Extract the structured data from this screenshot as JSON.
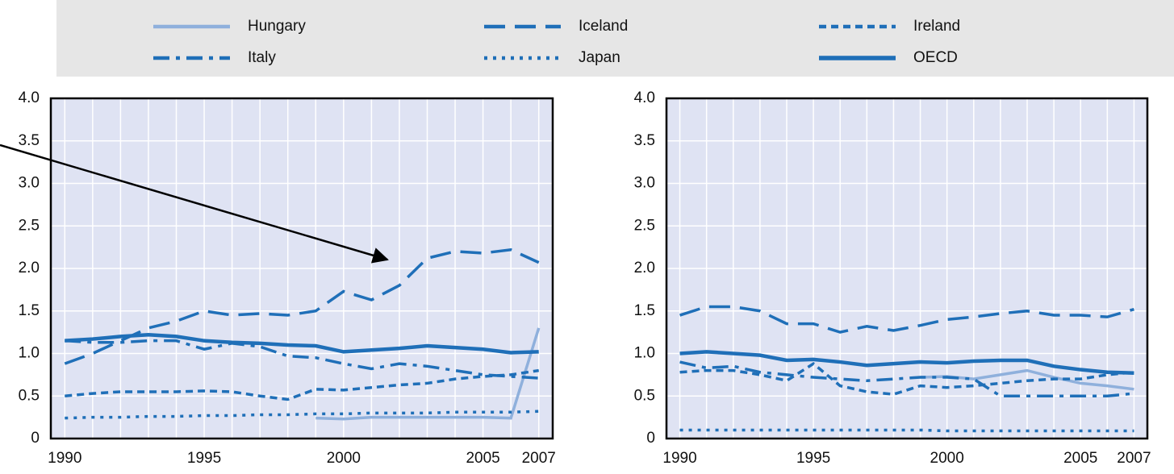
{
  "chart_data": [
    {
      "type": "line",
      "x": [
        1990,
        1991,
        1992,
        1993,
        1994,
        1995,
        1996,
        1997,
        1998,
        1999,
        2000,
        2001,
        2002,
        2003,
        2004,
        2005,
        2006,
        2007
      ],
      "xlim": [
        1989.5,
        2007.5
      ],
      "xticks": [
        1990,
        1995,
        2000,
        2005,
        2007
      ],
      "ylim": [
        0,
        4
      ],
      "yticks": [
        0,
        {
          "value": 0.5,
          "label": "0.5"
        },
        {
          "value": 1,
          "label": "1.0"
        },
        {
          "value": 1.5,
          "label": "1.5"
        },
        {
          "value": 2,
          "label": "2.0"
        },
        {
          "value": 2.5,
          "label": "2.5"
        },
        {
          "value": 3,
          "label": "3.0"
        },
        {
          "value": 3.5,
          "label": "3.5"
        },
        {
          "value": 4,
          "label": "4.0"
        }
      ],
      "grid": true,
      "series": [
        {
          "name": "Hungary",
          "color": "#8fb0dc",
          "dash": "solid",
          "values": [
            null,
            null,
            null,
            null,
            null,
            null,
            null,
            null,
            null,
            0.24,
            0.23,
            0.25,
            0.25,
            0.25,
            0.25,
            0.25,
            0.24,
            1.3
          ]
        },
        {
          "name": "Iceland",
          "color": "#1f6fb8",
          "dash": "long",
          "values": [
            0.88,
            1.0,
            1.15,
            1.3,
            1.38,
            1.5,
            1.45,
            1.47,
            1.45,
            1.5,
            1.73,
            1.63,
            1.8,
            2.12,
            2.2,
            2.18,
            2.22,
            2.07
          ]
        },
        {
          "name": "Ireland",
          "color": "#1f6fb8",
          "dash": "short",
          "values": [
            0.5,
            0.53,
            0.55,
            0.55,
            0.55,
            0.56,
            0.55,
            0.5,
            0.46,
            0.58,
            0.57,
            0.6,
            0.63,
            0.65,
            0.7,
            0.73,
            0.75,
            0.8
          ]
        },
        {
          "name": "Italy",
          "color": "#1f6fb8",
          "dash": "dashdot",
          "values": [
            1.15,
            1.13,
            1.13,
            1.15,
            1.15,
            1.05,
            1.12,
            1.08,
            0.97,
            0.95,
            0.88,
            0.82,
            0.88,
            0.85,
            0.8,
            0.75,
            0.73,
            0.71
          ]
        },
        {
          "name": "Japan",
          "color": "#1f6fb8",
          "dash": "dot",
          "values": [
            0.24,
            0.25,
            0.25,
            0.26,
            0.26,
            0.27,
            0.27,
            0.28,
            0.28,
            0.29,
            0.29,
            0.3,
            0.3,
            0.3,
            0.31,
            0.31,
            0.31,
            0.32
          ]
        },
        {
          "name": "OECD",
          "color": "#1f6fb8",
          "dash": "thick",
          "values": [
            1.15,
            1.17,
            1.2,
            1.22,
            1.2,
            1.15,
            1.13,
            1.12,
            1.1,
            1.09,
            1.02,
            1.04,
            1.06,
            1.09,
            1.07,
            1.05,
            1.01,
            1.02
          ]
        }
      ]
    },
    {
      "type": "line",
      "x": [
        1990,
        1991,
        1992,
        1993,
        1994,
        1995,
        1996,
        1997,
        1998,
        1999,
        2000,
        2001,
        2002,
        2003,
        2004,
        2005,
        2006,
        2007
      ],
      "xlim": [
        1989.5,
        2007.5
      ],
      "xticks": [
        1990,
        1995,
        2000,
        2005,
        2007
      ],
      "ylim": [
        0,
        4
      ],
      "yticks": [
        0,
        {
          "value": 0.5,
          "label": "0.5"
        },
        {
          "value": 1,
          "label": "1.0"
        },
        {
          "value": 1.5,
          "label": "1.5"
        },
        {
          "value": 2,
          "label": "2.0"
        },
        {
          "value": 2.5,
          "label": "2.5"
        },
        {
          "value": 3,
          "label": "3.0"
        },
        {
          "value": 3.5,
          "label": "3.5"
        },
        {
          "value": 4,
          "label": "4.0"
        }
      ],
      "grid": true,
      "series": [
        {
          "name": "Hungary",
          "color": "#8fb0dc",
          "dash": "solid",
          "values": [
            null,
            null,
            null,
            null,
            null,
            null,
            null,
            null,
            null,
            0.72,
            0.73,
            0.7,
            0.75,
            0.8,
            0.72,
            0.65,
            0.62,
            0.58
          ]
        },
        {
          "name": "Iceland",
          "color": "#1f6fb8",
          "dash": "long",
          "values": [
            1.45,
            1.55,
            1.55,
            1.5,
            1.35,
            1.35,
            1.25,
            1.32,
            1.27,
            1.33,
            1.4,
            1.43,
            1.47,
            1.5,
            1.45,
            1.45,
            1.43,
            1.52
          ]
        },
        {
          "name": "Ireland",
          "color": "#1f6fb8",
          "dash": "short",
          "values": [
            0.78,
            0.8,
            0.8,
            0.75,
            0.68,
            0.88,
            0.62,
            0.55,
            0.52,
            0.62,
            0.6,
            0.62,
            0.65,
            0.68,
            0.7,
            0.7,
            0.75,
            0.78
          ]
        },
        {
          "name": "Italy",
          "color": "#1f6fb8",
          "dash": "dashdot",
          "values": [
            0.9,
            0.83,
            0.85,
            0.78,
            0.75,
            0.72,
            0.7,
            0.68,
            0.7,
            0.72,
            0.72,
            0.7,
            0.5,
            0.5,
            0.5,
            0.5,
            0.5,
            0.53
          ]
        },
        {
          "name": "Japan",
          "color": "#1f6fb8",
          "dash": "dot",
          "values": [
            0.1,
            0.1,
            0.1,
            0.1,
            0.1,
            0.1,
            0.1,
            0.1,
            0.1,
            0.1,
            0.09,
            0.09,
            0.09,
            0.09,
            0.09,
            0.09,
            0.09,
            0.09
          ]
        },
        {
          "name": "OECD",
          "color": "#1f6fb8",
          "dash": "thick",
          "values": [
            1.0,
            1.02,
            1.0,
            0.98,
            0.92,
            0.93,
            0.9,
            0.86,
            0.88,
            0.9,
            0.89,
            0.91,
            0.92,
            0.92,
            0.85,
            0.81,
            0.78,
            0.77
          ]
        }
      ]
    }
  ]
}
